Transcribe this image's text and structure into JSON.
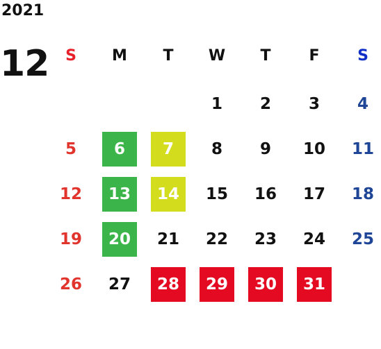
{
  "calendar": {
    "year": "2021",
    "month": "12",
    "weekdays": [
      {
        "label": "S",
        "color": "#e8202a"
      },
      {
        "label": "M",
        "color": "#111111"
      },
      {
        "label": "T",
        "color": "#111111"
      },
      {
        "label": "W",
        "color": "#111111"
      },
      {
        "label": "T",
        "color": "#111111"
      },
      {
        "label": "F",
        "color": "#111111"
      },
      {
        "label": "S",
        "color": "#1230c8"
      }
    ],
    "weeks": [
      [
        null,
        null,
        null,
        {
          "day": "1"
        },
        {
          "day": "2"
        },
        {
          "day": "3"
        },
        {
          "day": "4"
        }
      ],
      [
        {
          "day": "5"
        },
        {
          "day": "6",
          "highlight": "green"
        },
        {
          "day": "7",
          "highlight": "yellow"
        },
        {
          "day": "8"
        },
        {
          "day": "9"
        },
        {
          "day": "10"
        },
        {
          "day": "11"
        }
      ],
      [
        {
          "day": "12"
        },
        {
          "day": "13",
          "highlight": "green"
        },
        {
          "day": "14",
          "highlight": "yellow"
        },
        {
          "day": "15"
        },
        {
          "day": "16"
        },
        {
          "day": "17"
        },
        {
          "day": "18"
        }
      ],
      [
        {
          "day": "19"
        },
        {
          "day": "20",
          "highlight": "green"
        },
        {
          "day": "21"
        },
        {
          "day": "22"
        },
        {
          "day": "23"
        },
        {
          "day": "24"
        },
        {
          "day": "25"
        }
      ],
      [
        {
          "day": "26"
        },
        {
          "day": "27"
        },
        {
          "day": "28",
          "highlight": "red"
        },
        {
          "day": "29",
          "highlight": "red"
        },
        {
          "day": "30",
          "highlight": "red"
        },
        {
          "day": "31",
          "highlight": "red"
        },
        null
      ]
    ],
    "colors": {
      "sunday": "#e0342c",
      "saturday": "#1e4596",
      "weekday": "#111111",
      "green": "#3bb54a",
      "yellow": "#d4dc1e",
      "red": "#e30a22"
    }
  }
}
